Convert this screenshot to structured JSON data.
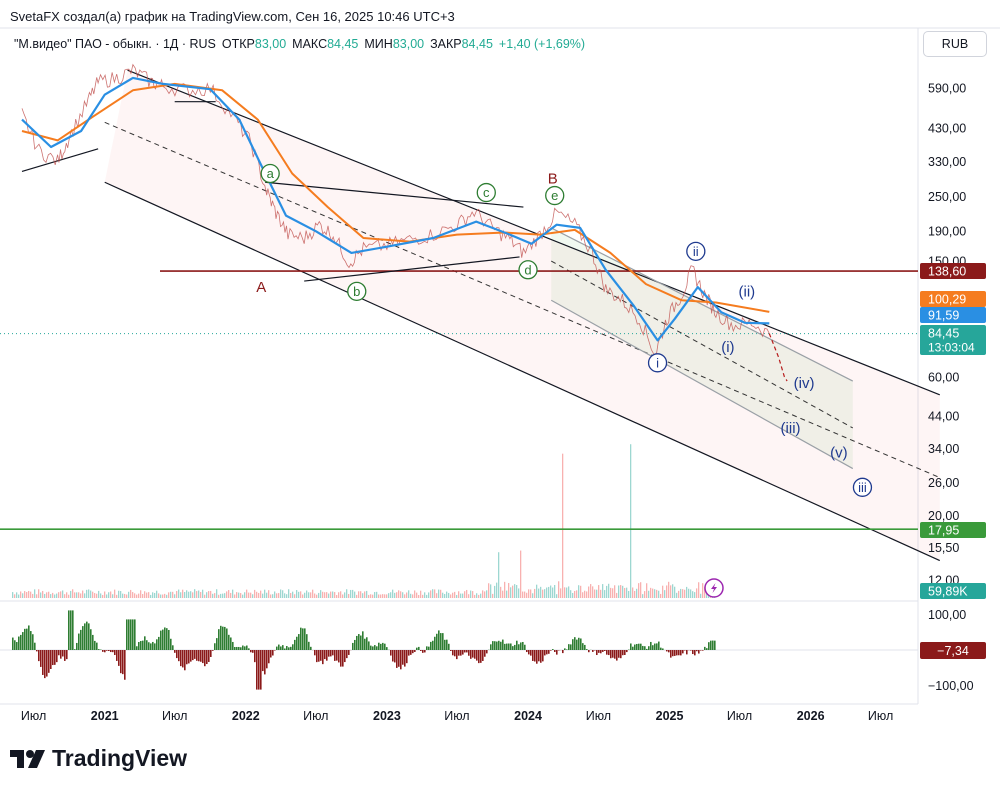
{
  "header": {
    "title": "SvetaFX создал(а) график на TradingView.com, Сен 16, 2025 10:46 UTC+3"
  },
  "legend": {
    "symbol": "\"М.видео\" ПАО - обыкн. · 1Д · RUS",
    "open_label": "ОТКР",
    "open_value": "83,00",
    "high_label": "МАКС",
    "high_value": "84,45",
    "low_label": "МИН",
    "low_value": "83,00",
    "close_label": "ЗАКР",
    "close_value": "84,45",
    "change": "+1,40 (+1,69%)"
  },
  "currency": "RUB",
  "brand": {
    "name": "TradingView"
  },
  "colors": {
    "ema_fast": "#2a8fe3",
    "ema_slow": "#f57c1f",
    "resistance": "#8b1a1a",
    "support": "#3a9a3a",
    "wave_blue": "#1f3a8f",
    "wave_green": "#2e7d32",
    "current": "#26a69a",
    "volume_up": "#26a69a",
    "volume_down": "#ef5350"
  },
  "chart_data": {
    "type": "line",
    "scale": "log",
    "x_ticks": [
      "Июл",
      "2021",
      "Июл",
      "2022",
      "Июл",
      "2023",
      "Июл",
      "2024",
      "Июл",
      "2025",
      "Июл",
      "2026",
      "Июл"
    ],
    "y_ticks": [
      590,
      430,
      330,
      250,
      190,
      150,
      60,
      44,
      34,
      26,
      20,
      15.5,
      12
    ],
    "y_tick_labels": [
      "590,00",
      "430,00",
      "330,00",
      "250,00",
      "190,00",
      "150,00",
      "60,00",
      "44,00",
      "34,00",
      "26,00",
      "20,00",
      "15,50",
      "12,00"
    ],
    "price_tags": [
      {
        "name": "resistance",
        "value": 138.6,
        "label": "138,60",
        "color": "#8b1a1a"
      },
      {
        "name": "ema-slow",
        "value": 100.29,
        "label": "100,29",
        "color": "#f57c1f"
      },
      {
        "name": "ema-fast",
        "value": 91.59,
        "label": "91,59",
        "color": "#2a8fe3"
      },
      {
        "name": "last",
        "value": 84.45,
        "label": "84,45",
        "sublabel": "13:03:04",
        "color": "#26a69a"
      },
      {
        "name": "support",
        "value": 17.95,
        "label": "17,95",
        "color": "#3a9a3a"
      },
      {
        "name": "volume",
        "label": "59,89K",
        "color": "#26a69a"
      }
    ],
    "horizontal_lines": [
      {
        "name": "resistance",
        "value": 138.6,
        "color": "#8b1a1a"
      },
      {
        "name": "support",
        "value": 17.95,
        "color": "#3a9a3a"
      }
    ],
    "price": [
      {
        "d": "2020-06-01",
        "v": 480
      },
      {
        "d": "2020-07-15",
        "v": 360
      },
      {
        "d": "2020-09-01",
        "v": 330
      },
      {
        "d": "2020-10-01",
        "v": 400
      },
      {
        "d": "2020-11-15",
        "v": 520
      },
      {
        "d": "2020-12-15",
        "v": 620
      },
      {
        "d": "2021-02-01",
        "v": 640
      },
      {
        "d": "2021-03-15",
        "v": 680
      },
      {
        "d": "2021-05-01",
        "v": 620
      },
      {
        "d": "2021-06-01",
        "v": 600
      },
      {
        "d": "2021-08-01",
        "v": 580
      },
      {
        "d": "2021-10-01",
        "v": 590
      },
      {
        "d": "2021-12-01",
        "v": 470
      },
      {
        "d": "2022-01-15",
        "v": 380
      },
      {
        "d": "2022-02-24",
        "v": 260
      },
      {
        "d": "2022-03-20",
        "v": 220
      },
      {
        "d": "2022-04-20",
        "v": 185
      },
      {
        "d": "2022-06-01",
        "v": 180
      },
      {
        "d": "2022-07-10",
        "v": 200
      },
      {
        "d": "2022-08-15",
        "v": 185
      },
      {
        "d": "2022-09-25",
        "v": 148
      },
      {
        "d": "2022-11-01",
        "v": 165
      },
      {
        "d": "2023-01-01",
        "v": 170
      },
      {
        "d": "2023-03-01",
        "v": 178
      },
      {
        "d": "2023-05-01",
        "v": 185
      },
      {
        "d": "2023-07-01",
        "v": 200
      },
      {
        "d": "2023-08-15",
        "v": 222
      },
      {
        "d": "2023-10-01",
        "v": 195
      },
      {
        "d": "2023-11-15",
        "v": 178
      },
      {
        "d": "2023-12-20",
        "v": 160
      },
      {
        "d": "2024-02-01",
        "v": 185
      },
      {
        "d": "2024-03-15",
        "v": 220
      },
      {
        "d": "2024-05-01",
        "v": 200
      },
      {
        "d": "2024-06-15",
        "v": 160
      },
      {
        "d": "2024-07-20",
        "v": 120
      },
      {
        "d": "2024-09-01",
        "v": 110
      },
      {
        "d": "2024-10-15",
        "v": 95
      },
      {
        "d": "2024-11-25",
        "v": 72
      },
      {
        "d": "2024-12-25",
        "v": 95
      },
      {
        "d": "2025-02-01",
        "v": 115
      },
      {
        "d": "2025-03-01",
        "v": 140
      },
      {
        "d": "2025-04-01",
        "v": 115
      },
      {
        "d": "2025-05-01",
        "v": 100
      },
      {
        "d": "2025-06-15",
        "v": 90
      },
      {
        "d": "2025-08-01",
        "v": 92
      },
      {
        "d": "2025-09-16",
        "v": 84.45
      }
    ],
    "ema_fast": [
      {
        "d": "2020-06-01",
        "v": 460
      },
      {
        "d": "2020-08-15",
        "v": 370
      },
      {
        "d": "2020-11-01",
        "v": 420
      },
      {
        "d": "2021-01-01",
        "v": 560
      },
      {
        "d": "2021-03-15",
        "v": 640
      },
      {
        "d": "2021-06-01",
        "v": 610
      },
      {
        "d": "2021-10-01",
        "v": 585
      },
      {
        "d": "2021-12-15",
        "v": 460
      },
      {
        "d": "2022-02-15",
        "v": 310
      },
      {
        "d": "2022-04-15",
        "v": 215
      },
      {
        "d": "2022-07-01",
        "v": 190
      },
      {
        "d": "2022-10-01",
        "v": 160
      },
      {
        "d": "2023-01-01",
        "v": 168
      },
      {
        "d": "2023-05-01",
        "v": 180
      },
      {
        "d": "2023-08-20",
        "v": 205
      },
      {
        "d": "2023-11-15",
        "v": 185
      },
      {
        "d": "2024-01-10",
        "v": 172
      },
      {
        "d": "2024-03-15",
        "v": 200
      },
      {
        "d": "2024-05-15",
        "v": 195
      },
      {
        "d": "2024-07-20",
        "v": 140
      },
      {
        "d": "2024-10-01",
        "v": 105
      },
      {
        "d": "2024-12-01",
        "v": 80
      },
      {
        "d": "2025-01-15",
        "v": 95
      },
      {
        "d": "2025-03-15",
        "v": 122
      },
      {
        "d": "2025-05-15",
        "v": 100
      },
      {
        "d": "2025-07-15",
        "v": 92
      },
      {
        "d": "2025-09-16",
        "v": 91.59
      }
    ],
    "ema_slow": [
      {
        "d": "2020-06-01",
        "v": 420
      },
      {
        "d": "2020-09-01",
        "v": 390
      },
      {
        "d": "2020-12-01",
        "v": 470
      },
      {
        "d": "2021-03-15",
        "v": 580
      },
      {
        "d": "2021-07-01",
        "v": 610
      },
      {
        "d": "2021-11-01",
        "v": 580
      },
      {
        "d": "2022-02-01",
        "v": 460
      },
      {
        "d": "2022-05-01",
        "v": 300
      },
      {
        "d": "2022-08-01",
        "v": 230
      },
      {
        "d": "2022-11-01",
        "v": 180
      },
      {
        "d": "2023-03-01",
        "v": 175
      },
      {
        "d": "2023-07-01",
        "v": 185
      },
      {
        "d": "2023-11-01",
        "v": 188
      },
      {
        "d": "2024-02-01",
        "v": 185
      },
      {
        "d": "2024-05-01",
        "v": 192
      },
      {
        "d": "2024-08-01",
        "v": 160
      },
      {
        "d": "2024-11-01",
        "v": 125
      },
      {
        "d": "2025-02-01",
        "v": 110
      },
      {
        "d": "2025-05-01",
        "v": 108
      },
      {
        "d": "2025-09-16",
        "v": 100.29
      }
    ],
    "projection": [
      {
        "d": "2025-09-16",
        "v": 84.45
      },
      {
        "d": "2025-10-10",
        "v": 70
      },
      {
        "d": "2025-10-25",
        "v": 60
      },
      {
        "d": "2025-11-01",
        "v": 58
      }
    ],
    "outer_channel": {
      "upper": [
        {
          "d": "2021-03-01",
          "v": 680
        },
        {
          "d": "2026-12-01",
          "v": 52
        }
      ],
      "lower": [
        {
          "d": "2021-01-01",
          "v": 280
        },
        {
          "d": "2026-12-01",
          "v": 14
        }
      ],
      "mid": [
        {
          "d": "2021-01-01",
          "v": 450
        },
        {
          "d": "2026-12-01",
          "v": 27
        }
      ]
    },
    "inner_channel": {
      "upper": [
        {
          "d": "2024-03-01",
          "v": 195
        },
        {
          "d": "2026-04-20",
          "v": 58
        }
      ],
      "lower": [
        {
          "d": "2024-03-01",
          "v": 110
        },
        {
          "d": "2026-04-20",
          "v": 29
        }
      ],
      "mid": [
        {
          "d": "2024-03-01",
          "v": 150
        },
        {
          "d": "2026-04-20",
          "v": 40
        }
      ]
    },
    "trendlines": [
      {
        "name": "triangle-upper",
        "points": [
          {
            "d": "2022-02-20",
            "v": 280
          },
          {
            "d": "2023-12-20",
            "v": 230
          }
        ]
      },
      {
        "name": "triangle-lower",
        "points": [
          {
            "d": "2022-06-01",
            "v": 128
          },
          {
            "d": "2023-12-10",
            "v": 155
          }
        ]
      },
      {
        "name": "early-support",
        "points": [
          {
            "d": "2020-06-01",
            "v": 305
          },
          {
            "d": "2020-12-15",
            "v": 365
          }
        ]
      },
      {
        "name": "top-flat",
        "points": [
          {
            "d": "2021-07-01",
            "v": 530
          },
          {
            "d": "2021-10-15",
            "v": 530
          }
        ]
      }
    ],
    "wave_labels": [
      {
        "text": "a",
        "style": "circle-green",
        "d": "2022-03-05",
        "v": 300
      },
      {
        "text": "b",
        "style": "circle-green",
        "d": "2022-10-15",
        "v": 118
      },
      {
        "text": "c",
        "style": "circle-green",
        "d": "2023-09-15",
        "v": 258
      },
      {
        "text": "d",
        "style": "circle-green",
        "d": "2024-01-01",
        "v": 140
      },
      {
        "text": "e",
        "style": "circle-green",
        "d": "2024-03-10",
        "v": 252
      },
      {
        "text": "A",
        "style": "plain-red",
        "d": "2022-02-10",
        "v": 122
      },
      {
        "text": "B",
        "style": "plain-red",
        "d": "2024-03-05",
        "v": 288
      },
      {
        "text": "ii",
        "style": "circle-blue",
        "d": "2025-03-10",
        "v": 162
      },
      {
        "text": "(ii)",
        "style": "plain-blue",
        "d": "2025-07-20",
        "v": 118
      },
      {
        "text": "i",
        "style": "circle-blue",
        "d": "2024-12-01",
        "v": 67
      },
      {
        "text": "(i)",
        "style": "plain-blue",
        "d": "2025-06-01",
        "v": 76
      },
      {
        "text": "(iv)",
        "style": "plain-blue",
        "d": "2025-12-15",
        "v": 57
      },
      {
        "text": "(iii)",
        "style": "plain-blue",
        "d": "2025-11-10",
        "v": 40
      },
      {
        "text": "(v)",
        "style": "plain-blue",
        "d": "2026-03-15",
        "v": 33
      },
      {
        "text": "iii",
        "style": "circle-blue",
        "d": "2026-05-15",
        "v": 25
      }
    ],
    "oscillator": {
      "y_ticks": [
        "100,00",
        "−100,00"
      ],
      "last_label": "−7,34",
      "range": [
        -150,
        150
      ]
    }
  }
}
